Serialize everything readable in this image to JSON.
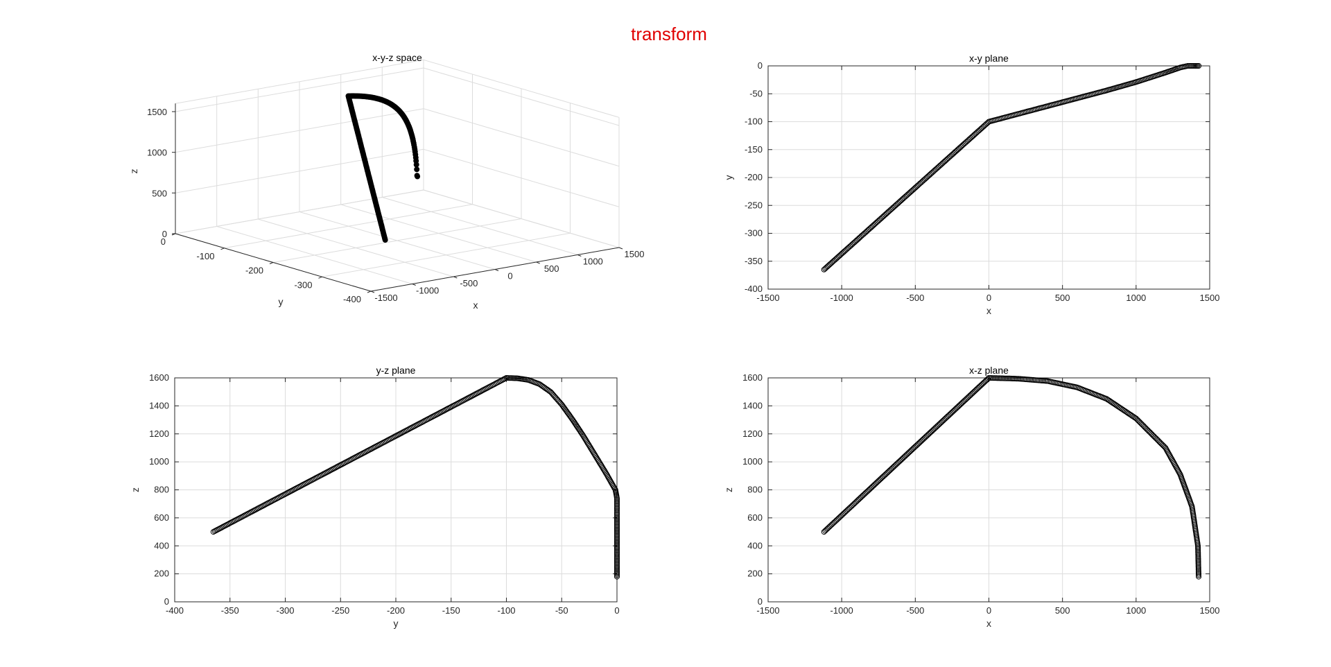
{
  "figure": {
    "title": "transform",
    "title_color": "#e00000"
  },
  "chart_data": [
    {
      "id": "xyz",
      "type": "scatter",
      "projection": "3d",
      "title": "x-y-z space",
      "xlabel": "x",
      "ylabel": "y",
      "zlabel": "z",
      "xlim": [
        -1500,
        1500
      ],
      "ylim": [
        -400,
        0
      ],
      "zlim": [
        0,
        1600
      ],
      "xticks": [
        -1500,
        -1000,
        -500,
        0,
        500,
        1000,
        1500
      ],
      "yticks": [
        0,
        -100,
        -200,
        -300,
        -400
      ],
      "zticks": [
        0,
        500,
        1000,
        1500
      ],
      "grid": true,
      "marker_color": "#000000",
      "series": [
        {
          "segments": [
            {
              "kind": "line",
              "start": [
                -1120,
                -365,
                500
              ],
              "end": [
                0,
                -100,
                1600
              ]
            },
            {
              "kind": "arc",
              "yz_elbow": [
                -1.4,
                800
              ],
              "end": [
                1425,
                0,
                180
              ]
            }
          ]
        }
      ]
    },
    {
      "id": "xy",
      "type": "scatter",
      "title": "x-y plane",
      "xlabel": "x",
      "ylabel": "y",
      "xlim": [
        -1500,
        1500
      ],
      "ylim": [
        -400,
        0
      ],
      "xticks": [
        -1500,
        -1000,
        -500,
        0,
        500,
        1000,
        1500
      ],
      "yticks": [
        0,
        -50,
        -100,
        -150,
        -200,
        -250,
        -300,
        -350,
        -400
      ],
      "grid": true,
      "marker_color": "#000000",
      "points": [
        [
          -1120,
          -365
        ],
        [
          0,
          -100
        ],
        [
          200,
          -86
        ],
        [
          400,
          -72
        ],
        [
          600,
          -58
        ],
        [
          800,
          -44
        ],
        [
          1000,
          -29
        ],
        [
          1200,
          -12
        ],
        [
          1300,
          -3
        ],
        [
          1350,
          0
        ],
        [
          1400,
          0
        ],
        [
          1425,
          0
        ]
      ]
    },
    {
      "id": "yz",
      "type": "scatter",
      "title": "y-z plane",
      "xlabel": "y",
      "ylabel": "z",
      "xlim": [
        -400,
        0
      ],
      "ylim": [
        0,
        1600
      ],
      "xticks": [
        -400,
        -350,
        -300,
        -250,
        -200,
        -150,
        -100,
        -50,
        0
      ],
      "yticks": [
        0,
        200,
        400,
        600,
        800,
        1000,
        1200,
        1400,
        1600
      ],
      "grid": true,
      "marker_color": "#000000",
      "points": [
        [
          -365,
          500
        ],
        [
          -100,
          1600
        ],
        [
          -90,
          1597
        ],
        [
          -80,
          1585
        ],
        [
          -70,
          1555
        ],
        [
          -60,
          1500
        ],
        [
          -50,
          1410
        ],
        [
          -40,
          1300
        ],
        [
          -30,
          1180
        ],
        [
          -20,
          1050
        ],
        [
          -10,
          920
        ],
        [
          -1.4,
          800
        ],
        [
          0,
          740
        ],
        [
          0,
          600
        ],
        [
          0,
          400
        ],
        [
          0,
          180
        ]
      ]
    },
    {
      "id": "xz",
      "type": "scatter",
      "title": "x-z plane",
      "xlabel": "x",
      "ylabel": "z",
      "xlim": [
        -1500,
        1500
      ],
      "ylim": [
        0,
        1600
      ],
      "xticks": [
        -1500,
        -1000,
        -500,
        0,
        500,
        1000,
        1500
      ],
      "yticks": [
        0,
        200,
        400,
        600,
        800,
        1000,
        1200,
        1400,
        1600
      ],
      "grid": true,
      "marker_color": "#000000",
      "points": [
        [
          -1120,
          500
        ],
        [
          0,
          1600
        ],
        [
          200,
          1594
        ],
        [
          400,
          1577
        ],
        [
          600,
          1532
        ],
        [
          800,
          1450
        ],
        [
          1000,
          1310
        ],
        [
          1200,
          1100
        ],
        [
          1300,
          910
        ],
        [
          1380,
          680
        ],
        [
          1420,
          400
        ],
        [
          1425,
          180
        ]
      ]
    }
  ]
}
